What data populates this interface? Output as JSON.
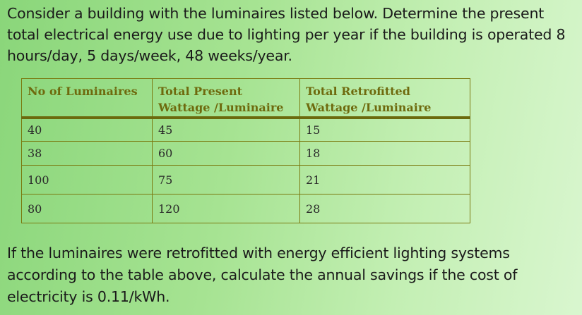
{
  "question": {
    "intro": "Consider a building with the luminaires listed below. Determine the present total electrical energy use due to lighting per year if the building is operated 8 hours/day, 5 days/week, 48 weeks/year.",
    "outro": "If the luminaires were retrofitted with energy efficient lighting systems according to the table above, calculate the annual savings if the cost of electricity is 0.11/kWh."
  },
  "table": {
    "headers": [
      "No of Luminaires",
      "Total Present Wattage /Luminaire",
      "Total Retrofitted Wattage /Luminaire"
    ],
    "rows": [
      [
        "40",
        "45",
        "15"
      ],
      [
        "38",
        "60",
        "18"
      ],
      [
        "100",
        "75",
        "21"
      ],
      [
        "80",
        "120",
        "28"
      ]
    ]
  },
  "colors": {
    "header_text": "#6e6a0e",
    "border": "#7a7a10",
    "background_start": "#8ad67a",
    "background_end": "#d9f6cf"
  }
}
